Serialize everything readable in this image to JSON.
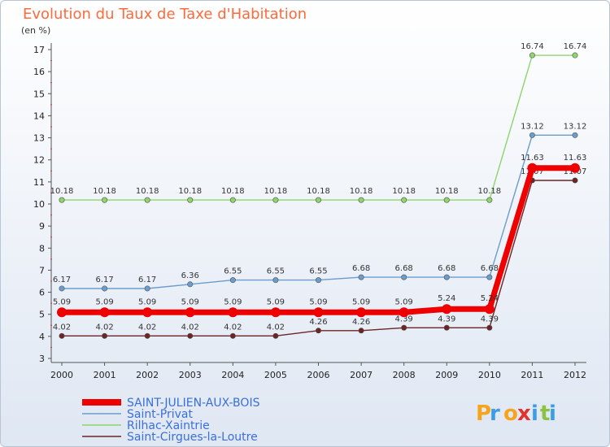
{
  "header": {
    "title": "Evolution du Taux de Taxe d'Habitation",
    "subtitle": "(en %)"
  },
  "logo": {
    "letters": [
      "P",
      "r",
      "o",
      "x",
      "i",
      "t",
      "i"
    ],
    "colors": [
      "#f7a41d",
      "#3b9de3",
      "#f7a41d",
      "#e2332d",
      "#3b9de3",
      "#8ac43f",
      "#3b9de3"
    ]
  },
  "chart_data": {
    "type": "line",
    "categories": [
      "2000",
      "2001",
      "2002",
      "2003",
      "2004",
      "2005",
      "2006",
      "2007",
      "2008",
      "2009",
      "2010",
      "2011",
      "2012"
    ],
    "ylim": [
      3,
      17
    ],
    "yticks": [
      3,
      4,
      5,
      6,
      7,
      8,
      9,
      10,
      11,
      12,
      13,
      14,
      15,
      16,
      17
    ],
    "grid": false,
    "legend_position": "bottom-left",
    "series": [
      {
        "name": "Rilhac-Xaintrie",
        "color": "#8ed56a",
        "width": 1.4,
        "values": [
          10.18,
          10.18,
          10.18,
          10.18,
          10.18,
          10.18,
          10.18,
          10.18,
          10.18,
          10.18,
          10.18,
          16.74,
          16.74
        ],
        "labels": [
          "10.18",
          "10.18",
          "10.18",
          "10.18",
          "10.18",
          "10.18",
          "10.18",
          "10.18",
          "10.18",
          "10.18",
          "10.18",
          "16.74",
          "16.74"
        ]
      },
      {
        "name": "Saint-Privat",
        "color": "#6b9ccc",
        "width": 1.4,
        "values": [
          6.17,
          6.17,
          6.17,
          6.36,
          6.55,
          6.55,
          6.55,
          6.68,
          6.68,
          6.68,
          6.68,
          13.12,
          13.12
        ],
        "labels": [
          "6.17",
          "6.17",
          "6.17",
          "6.36",
          "6.55",
          "6.55",
          "6.55",
          "6.68",
          "6.68",
          "6.68",
          "6.68",
          "13.12",
          "13.12"
        ]
      },
      {
        "name": "Saint-Cirgues-la-Loutre",
        "color": "#6b2525",
        "width": 1.4,
        "values": [
          4.02,
          4.02,
          4.02,
          4.02,
          4.02,
          4.02,
          4.26,
          4.26,
          4.39,
          4.39,
          4.39,
          11.07,
          11.07
        ],
        "labels": [
          "4.02",
          "4.02",
          "4.02",
          "4.02",
          "4.02",
          "4.02",
          "4.26",
          "4.26",
          "4.39",
          "4.39",
          "4.39",
          "11.07",
          "11.07"
        ]
      },
      {
        "name": "SAINT-JULIEN-AUX-BOIS",
        "color": "#ee0000",
        "width": 7,
        "values": [
          5.09,
          5.09,
          5.09,
          5.09,
          5.09,
          5.09,
          5.09,
          5.09,
          5.09,
          5.24,
          5.24,
          11.63,
          11.63
        ],
        "labels": [
          "5.09",
          "5.09",
          "5.09",
          "5.09",
          "5.09",
          "5.09",
          "5.09",
          "5.09",
          "5.09",
          "5.24",
          "5.24",
          "11.63",
          "11.63"
        ]
      }
    ],
    "legend_order": [
      "SAINT-JULIEN-AUX-BOIS",
      "Saint-Privat",
      "Rilhac-Xaintrie",
      "Saint-Cirgues-la-Loutre"
    ]
  }
}
